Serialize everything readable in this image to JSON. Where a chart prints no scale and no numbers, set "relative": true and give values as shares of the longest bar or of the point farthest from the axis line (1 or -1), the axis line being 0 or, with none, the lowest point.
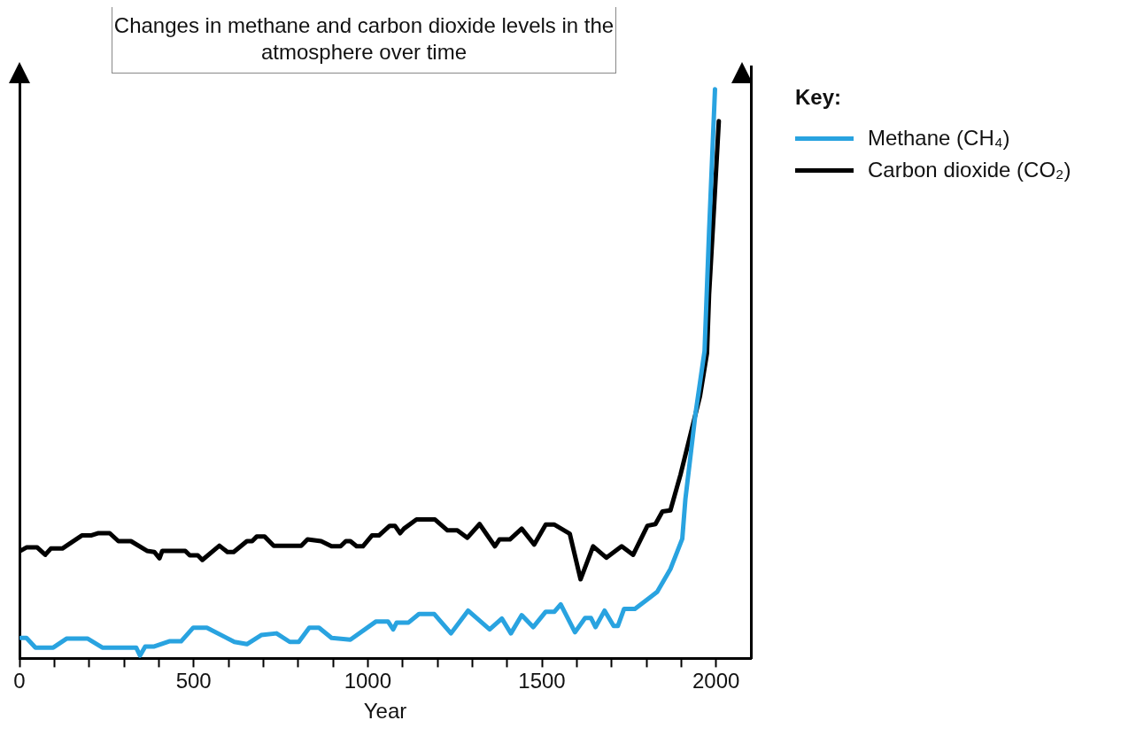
{
  "chart_data": {
    "type": "line",
    "title": "Changes in methane and carbon dioxide levels in the atmosphere over time",
    "xlabel": "Year",
    "legend_title": "Key:",
    "legend": "top right",
    "relative": true,
    "grid": false,
    "marker": "none",
    "line_style": "solid",
    "xlim": [
      0,
      2100
    ],
    "xticks": [
      0,
      {
        "value": 100,
        "label": null
      },
      {
        "value": 200,
        "label": null
      },
      {
        "value": 300,
        "label": null
      },
      {
        "value": 400,
        "label": null
      },
      500,
      {
        "value": 600,
        "label": null
      },
      {
        "value": 700,
        "label": null
      },
      {
        "value": 800,
        "label": null
      },
      {
        "value": 900,
        "label": null
      },
      1000,
      {
        "value": 1100,
        "label": null
      },
      {
        "value": 1200,
        "label": null
      },
      {
        "value": 1300,
        "label": null
      },
      {
        "value": 1400,
        "label": null
      },
      1500,
      {
        "value": 1600,
        "label": null
      },
      {
        "value": 1700,
        "label": null
      },
      {
        "value": 1800,
        "label": null
      },
      {
        "value": 1900,
        "label": null
      },
      2000
    ],
    "series": [
      {
        "name": "Methane (CH₄)",
        "color": "#29a3e0",
        "x": [
          3,
          20,
          46,
          97,
          136,
          195,
          238,
          335,
          346,
          361,
          387,
          430,
          464,
          499,
          538,
          617,
          653,
          694,
          738,
          776,
          802,
          832,
          860,
          896,
          950,
          1024,
          1058,
          1073,
          1083,
          1117,
          1147,
          1191,
          1239,
          1288,
          1350,
          1385,
          1411,
          1442,
          1475,
          1511,
          1536,
          1554,
          1595,
          1624,
          1641,
          1654,
          1680,
          1706,
          1718,
          1736,
          1767,
          1808,
          1831,
          1869,
          1903,
          1912,
          1941,
          1967,
          1980,
          1997
        ],
        "values": [
          0.036,
          0.036,
          0.019,
          0.019,
          0.035,
          0.035,
          0.019,
          0.019,
          0.005,
          0.021,
          0.021,
          0.03,
          0.03,
          0.054,
          0.054,
          0.029,
          0.025,
          0.041,
          0.044,
          0.029,
          0.029,
          0.054,
          0.054,
          0.036,
          0.033,
          0.065,
          0.065,
          0.051,
          0.063,
          0.063,
          0.078,
          0.078,
          0.044,
          0.084,
          0.051,
          0.07,
          0.044,
          0.076,
          0.055,
          0.082,
          0.082,
          0.095,
          0.046,
          0.071,
          0.071,
          0.055,
          0.084,
          0.057,
          0.057,
          0.087,
          0.087,
          0.106,
          0.117,
          0.157,
          0.21,
          0.28,
          0.43,
          0.54,
          0.75,
          1.0
        ]
      },
      {
        "name": "Carbon dioxide (CO₂)",
        "color": "#000000",
        "x": [
          3,
          20,
          51,
          74,
          90,
          123,
          179,
          205,
          225,
          259,
          284,
          320,
          366,
          387,
          402,
          410,
          476,
          489,
          512,
          525,
          574,
          597,
          615,
          653,
          668,
          681,
          704,
          730,
          809,
          827,
          866,
          896,
          922,
          937,
          950,
          968,
          986,
          1012,
          1032,
          1063,
          1078,
          1093,
          1104,
          1140,
          1193,
          1229,
          1257,
          1286,
          1321,
          1365,
          1378,
          1408,
          1442,
          1478,
          1511,
          1536,
          1580,
          1611,
          1647,
          1685,
          1729,
          1762,
          1803,
          1826,
          1846,
          1869,
          1898,
          1954,
          1974,
          1980,
          1995,
          2008
        ],
        "values": [
          0.189,
          0.195,
          0.195,
          0.182,
          0.193,
          0.193,
          0.216,
          0.216,
          0.22,
          0.22,
          0.206,
          0.206,
          0.189,
          0.187,
          0.176,
          0.189,
          0.189,
          0.181,
          0.181,
          0.173,
          0.198,
          0.187,
          0.187,
          0.206,
          0.206,
          0.214,
          0.214,
          0.198,
          0.198,
          0.209,
          0.206,
          0.197,
          0.197,
          0.206,
          0.206,
          0.197,
          0.197,
          0.216,
          0.216,
          0.233,
          0.233,
          0.22,
          0.228,
          0.244,
          0.244,
          0.225,
          0.225,
          0.212,
          0.236,
          0.197,
          0.209,
          0.209,
          0.228,
          0.2,
          0.235,
          0.235,
          0.219,
          0.139,
          0.197,
          0.177,
          0.197,
          0.182,
          0.233,
          0.236,
          0.258,
          0.26,
          0.323,
          0.461,
          0.536,
          0.64,
          0.8,
          0.944
        ]
      }
    ]
  }
}
